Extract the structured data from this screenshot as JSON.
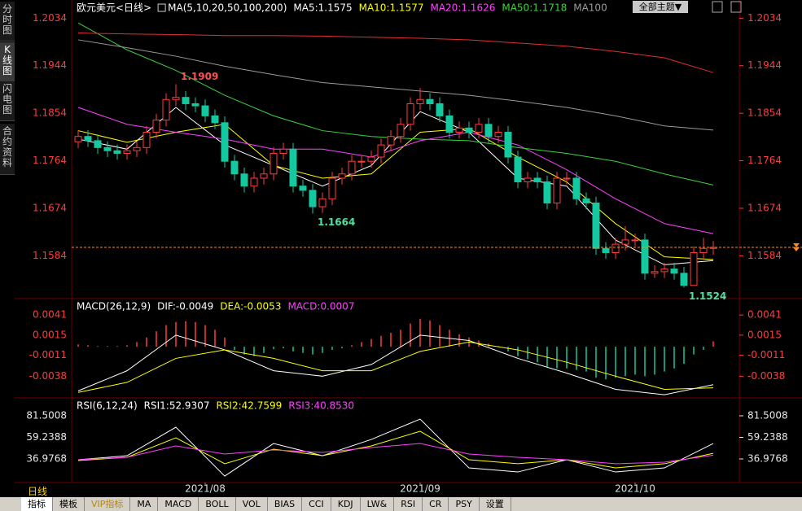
{
  "header": {
    "title": "欧元美元<日线>",
    "ma_label": "MA(5,10,20,50,100,200)",
    "theme_select": "全部主题▼"
  },
  "sidebar": [
    "分时图",
    "K线图",
    "闪电图",
    "合约资料"
  ],
  "period": "日线",
  "toolbar": [
    "指标",
    "模板",
    "VIP指标",
    "MA",
    "MACD",
    "BOLL",
    "VOL",
    "BIAS",
    "CCI",
    "KDJ",
    "LW&",
    "RSI",
    "CR",
    "PSY",
    "设置"
  ],
  "chart_data": [
    {
      "type": "candlestick",
      "up_color": "#ff3c3c",
      "down_color": "#14c8a0",
      "tick_color": "#ff3c3c",
      "ylim": [
        1.1506,
        1.2053
      ],
      "yticks": [
        1.2034,
        1.1944,
        1.1854,
        1.1764,
        1.1674,
        1.1584
      ],
      "xticks": [
        {
          "value": 13,
          "label": "2021/08"
        },
        {
          "value": 35,
          "label": "2021/09"
        },
        {
          "value": 57,
          "label": "2021/10"
        }
      ],
      "ohlc": [
        [
          1.18,
          1.1822,
          1.1788,
          1.181
        ],
        [
          1.181,
          1.1822,
          1.179,
          1.1802
        ],
        [
          1.1802,
          1.1814,
          1.1777,
          1.1789
        ],
        [
          1.1789,
          1.1801,
          1.1771,
          1.1783
        ],
        [
          1.1783,
          1.1795,
          1.1766,
          1.1778
        ],
        [
          1.1778,
          1.1795,
          1.1766,
          1.1783
        ],
        [
          1.1783,
          1.1801,
          1.1771,
          1.1789
        ],
        [
          1.1789,
          1.183,
          1.1777,
          1.1818
        ],
        [
          1.1818,
          1.1853,
          1.1806,
          1.1841
        ],
        [
          1.1841,
          1.1892,
          1.1829,
          1.188
        ],
        [
          1.188,
          1.1909,
          1.1868,
          1.1884
        ],
        [
          1.1884,
          1.1896,
          1.186,
          1.1872
        ],
        [
          1.1872,
          1.1884,
          1.1856,
          1.1868
        ],
        [
          1.1868,
          1.188,
          1.1837,
          1.1849
        ],
        [
          1.1849,
          1.1861,
          1.1824,
          1.1836
        ],
        [
          1.1836,
          1.1848,
          1.1751,
          1.1763
        ],
        [
          1.1763,
          1.1775,
          1.1727,
          1.1739
        ],
        [
          1.1739,
          1.1751,
          1.1704,
          1.1716
        ],
        [
          1.1716,
          1.1743,
          1.1704,
          1.1731
        ],
        [
          1.1731,
          1.1751,
          1.1719,
          1.1739
        ],
        [
          1.1739,
          1.179,
          1.1727,
          1.1778
        ],
        [
          1.1778,
          1.1798,
          1.1766,
          1.1786
        ],
        [
          1.1786,
          1.1798,
          1.1704,
          1.1716
        ],
        [
          1.1716,
          1.1728,
          1.1696,
          1.1708
        ],
        [
          1.1708,
          1.172,
          1.1664,
          1.1677
        ],
        [
          1.1677,
          1.1704,
          1.1665,
          1.1692
        ],
        [
          1.1692,
          1.1743,
          1.168,
          1.1731
        ],
        [
          1.1731,
          1.1751,
          1.1719,
          1.1739
        ],
        [
          1.1739,
          1.1775,
          1.1727,
          1.1763
        ],
        [
          1.1763,
          1.1775,
          1.1751,
          1.1763
        ],
        [
          1.1763,
          1.1783,
          1.1751,
          1.1771
        ],
        [
          1.1771,
          1.1806,
          1.1759,
          1.1794
        ],
        [
          1.1794,
          1.1822,
          1.1782,
          1.181
        ],
        [
          1.181,
          1.1845,
          1.1798,
          1.1833
        ],
        [
          1.1833,
          1.1884,
          1.1821,
          1.1872
        ],
        [
          1.1872,
          1.1902,
          1.186,
          1.188
        ],
        [
          1.188,
          1.1892,
          1.186,
          1.1872
        ],
        [
          1.1872,
          1.1884,
          1.1837,
          1.1849
        ],
        [
          1.1849,
          1.1861,
          1.1806,
          1.1818
        ],
        [
          1.1818,
          1.1838,
          1.1806,
          1.1826
        ],
        [
          1.1826,
          1.1838,
          1.1806,
          1.1818
        ],
        [
          1.1818,
          1.1845,
          1.1806,
          1.1833
        ],
        [
          1.1833,
          1.1845,
          1.1798,
          1.181
        ],
        [
          1.181,
          1.183,
          1.1798,
          1.1818
        ],
        [
          1.1818,
          1.183,
          1.1759,
          1.1771
        ],
        [
          1.1771,
          1.1783,
          1.1712,
          1.1724
        ],
        [
          1.1724,
          1.1743,
          1.1712,
          1.1731
        ],
        [
          1.1731,
          1.1743,
          1.1712,
          1.1724
        ],
        [
          1.1724,
          1.1736,
          1.1672,
          1.1684
        ],
        [
          1.1684,
          1.1743,
          1.1672,
          1.1731
        ],
        [
          1.1731,
          1.1743,
          1.1719,
          1.1731
        ],
        [
          1.1731,
          1.1743,
          1.168,
          1.1692
        ],
        [
          1.1692,
          1.1704,
          1.1672,
          1.1684
        ],
        [
          1.1684,
          1.1696,
          1.1586,
          1.1598
        ],
        [
          1.1598,
          1.161,
          1.1578,
          1.159
        ],
        [
          1.159,
          1.1618,
          1.1578,
          1.1606
        ],
        [
          1.1606,
          1.164,
          1.1594,
          1.1614
        ],
        [
          1.1614,
          1.1626,
          1.1602,
          1.1614
        ],
        [
          1.1614,
          1.1626,
          1.1539,
          1.1551
        ],
        [
          1.1551,
          1.1566,
          1.1542,
          1.1554
        ],
        [
          1.1554,
          1.1571,
          1.1542,
          1.1559
        ],
        [
          1.1559,
          1.1571,
          1.1539,
          1.1551
        ],
        [
          1.1551,
          1.1563,
          1.1524,
          1.1528
        ],
        [
          1.1528,
          1.1602,
          1.153,
          1.159
        ],
        [
          1.159,
          1.1618,
          1.1578,
          1.1598
        ],
        [
          1.1598,
          1.1612,
          1.1586,
          1.16
        ]
      ],
      "x": [
        0,
        5,
        10,
        15,
        20,
        25,
        30,
        35,
        40,
        45,
        50,
        55,
        60,
        65
      ],
      "series": [
        {
          "name": "MA5:1.1575",
          "color": "#ffffff",
          "values": [
            1.1805,
            1.1786,
            1.1865,
            1.1794,
            1.1755,
            1.1716,
            1.1755,
            1.1857,
            1.1818,
            1.1731,
            1.1716,
            1.1614,
            1.1567,
            1.1575
          ]
        },
        {
          "name": "MA10:1.1577",
          "color": "#ffff00",
          "values": [
            1.1821,
            1.1799,
            1.1818,
            1.1833,
            1.1755,
            1.1731,
            1.1739,
            1.1818,
            1.1825,
            1.1771,
            1.1724,
            1.1645,
            1.1582,
            1.1577
          ]
        },
        {
          "name": "MA20:1.1626",
          "color": "#ff40ff",
          "values": [
            1.1865,
            1.1833,
            1.1818,
            1.1805,
            1.1786,
            1.1786,
            1.1771,
            1.1802,
            1.1818,
            1.1794,
            1.1747,
            1.1692,
            1.1645,
            1.1626
          ]
        },
        {
          "name": "MA50:1.1718",
          "color": "#3cd23c",
          "values": [
            1.2025,
            1.1974,
            1.1935,
            1.1888,
            1.1849,
            1.1821,
            1.181,
            1.1805,
            1.1802,
            1.1789,
            1.1778,
            1.1763,
            1.1739,
            1.1718
          ]
        },
        {
          "name": "MA100",
          "color": "#9a9a9a",
          "values": [
            1.1993,
            1.1978,
            1.1962,
            1.1943,
            1.1927,
            1.1912,
            1.1904,
            1.1896,
            1.1888,
            1.1877,
            1.1865,
            1.1849,
            1.183,
            1.1822
          ]
        },
        {
          "color": "#e03030",
          "values": [
            1.2006,
            1.2004,
            1.2003,
            1.2001,
            1.2001,
            1.2,
            1.1998,
            1.1996,
            1.1993,
            1.1987,
            1.1981,
            1.1971,
            1.1959,
            1.1931
          ]
        }
      ],
      "annotations": [
        {
          "label": "1.1909",
          "value": 1.1909,
          "x": 10,
          "color": "#ff5050"
        },
        {
          "label": "1.1664",
          "value": 1.1664,
          "x": 24,
          "color": "#50e0a0"
        },
        {
          "label": "1.1524",
          "value": 1.1524,
          "x": 62,
          "color": "#50e0a0"
        }
      ],
      "last_price_line": true,
      "last_price_color": "#ff8c1a"
    },
    {
      "type": "macd",
      "title": "MACD(26,12,9)",
      "up_color": "#ff3c3c",
      "down_color": "#14c8a0",
      "tick_color": "#ff3c3c",
      "ylim": [
        -0.0065,
        0.0059
      ],
      "yticks": [
        0.0041,
        0.0015,
        -0.0011,
        -0.0038
      ],
      "histogram": [
        0.0003,
        0.0002,
        0.0001,
        0.0001,
        0.0001,
        0.0002,
        0.0006,
        0.0012,
        0.002,
        0.0028,
        0.0032,
        0.0033,
        0.0032,
        0.0028,
        0.0022,
        0.0012,
        -0.0004,
        -0.001,
        -0.0012,
        -0.0008,
        -0.0003,
        -0.0002,
        -0.0006,
        -0.0008,
        -0.001,
        -0.0008,
        -0.0004,
        -0.0002,
        0.0002,
        0.0006,
        0.001,
        0.0014,
        0.0018,
        0.0022,
        0.003,
        0.0036,
        0.0034,
        0.0028,
        0.0022,
        0.0016,
        0.0012,
        0.0008,
        0.0004,
        0.0001,
        -0.0006,
        -0.0012,
        -0.0016,
        -0.002,
        -0.0026,
        -0.0028,
        -0.0028,
        -0.003,
        -0.0032,
        -0.004,
        -0.0042,
        -0.004,
        -0.0038,
        -0.0036,
        -0.0038,
        -0.0036,
        -0.0032,
        -0.0028,
        -0.0022,
        -0.001,
        -0.0004,
        0.0007
      ],
      "histogram_label": "MACD:0.0007",
      "histogram_label_color": "#ff40ff",
      "x": [
        0,
        5,
        10,
        15,
        20,
        25,
        30,
        35,
        40,
        45,
        50,
        55,
        60,
        65
      ],
      "series": [
        {
          "name": "DIF:-0.0049",
          "color": "#ffffff",
          "values": [
            -0.0057,
            -0.0031,
            0.0015,
            -0.0004,
            -0.0031,
            -0.0038,
            -0.0023,
            0.0015,
            0.0008,
            -0.0015,
            -0.0034,
            -0.0055,
            -0.0062,
            -0.0049
          ]
        },
        {
          "name": "DEA:-0.0053",
          "color": "#ffff00",
          "values": [
            -0.0059,
            -0.0046,
            -0.0015,
            -0.0004,
            -0.0015,
            -0.0031,
            -0.0031,
            -0.0006,
            0.0006,
            -0.0004,
            -0.002,
            -0.0038,
            -0.0055,
            -0.0053
          ]
        }
      ]
    },
    {
      "type": "rsi",
      "title": "RSI(6,12,24)",
      "tick_color": "#e8e8e8",
      "ylim": [
        13.46,
        97.46
      ],
      "yticks": [
        81.5008,
        59.2388,
        36.9768
      ],
      "x": [
        0,
        5,
        10,
        15,
        20,
        25,
        30,
        35,
        40,
        45,
        50,
        55,
        60,
        65
      ],
      "series": [
        {
          "name": "RSI1:52.9307",
          "color": "#ffffff",
          "values": [
            36.1,
            40.3,
            69.7,
            19.3,
            52.9,
            40.3,
            57.1,
            78.1,
            27.7,
            23.5,
            36.1,
            23.5,
            27.7,
            52.9307
          ]
        },
        {
          "name": "RSI2:42.7599",
          "color": "#ffff00",
          "values": [
            35.3,
            38.7,
            58.8,
            32.0,
            47.1,
            40.3,
            50.4,
            65.5,
            36.1,
            32.0,
            36.1,
            27.7,
            32.0,
            42.7599
          ]
        },
        {
          "name": "RSI3:40.8530",
          "color": "#ff40ff",
          "values": [
            36.1,
            38.7,
            50.4,
            42.0,
            46.2,
            43.7,
            48.7,
            52.9,
            42.0,
            38.7,
            36.1,
            32.0,
            33.6,
            40.853
          ]
        }
      ]
    }
  ]
}
